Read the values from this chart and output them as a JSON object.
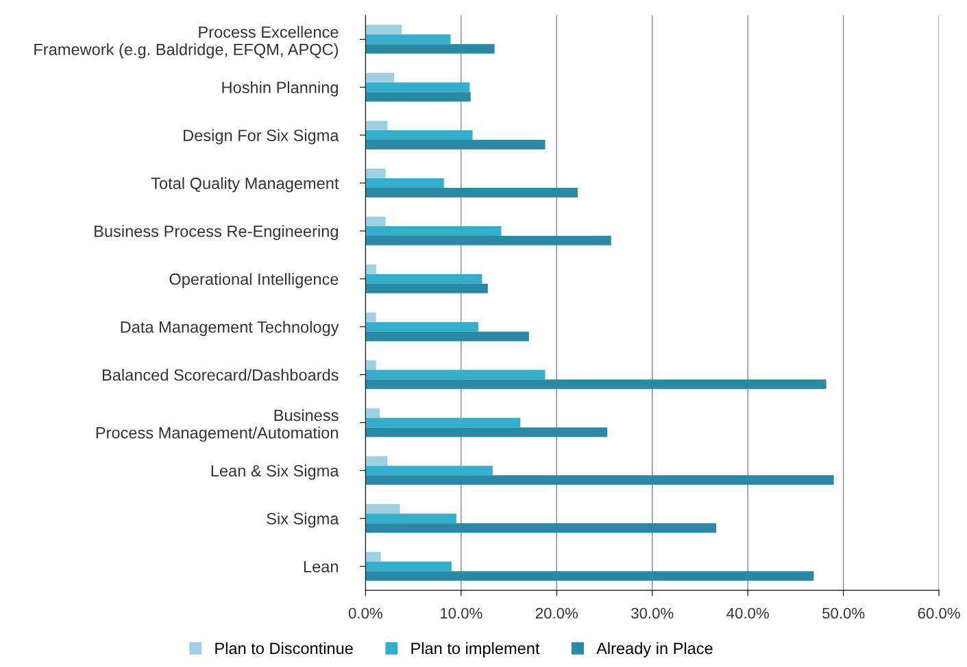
{
  "chart_data": {
    "type": "bar",
    "orientation": "horizontal",
    "categories": [
      "Process Excellence\nFramework (e.g. Baldridge, EFQM, APQC)",
      "Hoshin Planning",
      "Design For Six Sigma",
      "Total Quality Management",
      "Business Process Re-Engineering",
      "Operational Intelligence",
      "Data Management Technology",
      "Balanced Scorecard/Dashboards",
      "Business\nProcess Management/Automation",
      "Lean & Six Sigma",
      "Six Sigma",
      "Lean"
    ],
    "series": [
      {
        "name": "Plan to Discontinue",
        "color": "#9fd0e2",
        "values": [
          3.8,
          3.0,
          2.3,
          2.1,
          2.1,
          1.1,
          1.1,
          1.1,
          1.5,
          2.3,
          3.6,
          1.6
        ]
      },
      {
        "name": "Plan to implement",
        "color": "#35aecb",
        "values": [
          8.9,
          10.9,
          11.2,
          8.2,
          14.2,
          12.2,
          11.8,
          18.8,
          16.2,
          13.3,
          9.5,
          9.0
        ]
      },
      {
        "name": "Already in Place",
        "color": "#2a8aa6",
        "values": [
          13.5,
          11.0,
          18.8,
          22.2,
          25.7,
          12.8,
          17.1,
          48.2,
          25.3,
          49.0,
          36.7,
          46.9
        ]
      }
    ],
    "xlim": [
      0,
      60
    ],
    "xticks": [
      {
        "value": 0,
        "label": "0.0%"
      },
      {
        "value": 10,
        "label": "10.0%"
      },
      {
        "value": 20,
        "label": "20.0%"
      },
      {
        "value": 30,
        "label": "30.0%"
      },
      {
        "value": 40,
        "label": "40.0%"
      },
      {
        "value": 50,
        "label": "50.0%"
      },
      {
        "value": 60,
        "label": "60.0%"
      }
    ],
    "grid": "x",
    "legend": "bottom"
  }
}
